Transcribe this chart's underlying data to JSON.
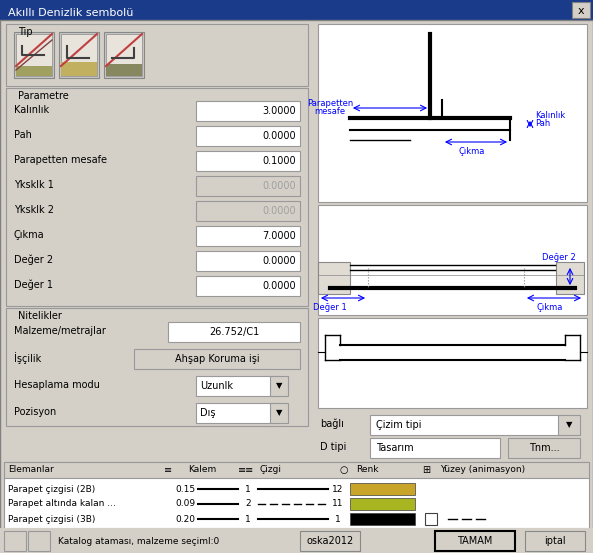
{
  "title": "Akıllı Denizlik sembolü",
  "bg_color": "#d4d0c8",
  "title_bg": "#1a3a8a",
  "title_fg": "#ffffff",
  "section_tip": "Tip",
  "section_parametre": "Parametre",
  "section_nitelikler": "Nitelikler",
  "params": [
    {
      "label": "Kalınlık",
      "value": "3.0000",
      "enabled": true
    },
    {
      "label": "Pah",
      "value": "0.0000",
      "enabled": true
    },
    {
      "label": "Parapetten mesafe",
      "value": "0.1000",
      "enabled": true
    },
    {
      "label": "Yksklk 1",
      "value": "0.0000",
      "enabled": false
    },
    {
      "label": "Yksklk 2",
      "value": "0.0000",
      "enabled": false
    },
    {
      "label": "Çıkma",
      "value": "7.0000",
      "enabled": true
    },
    {
      "label": "Değer 2",
      "value": "0.0000",
      "enabled": true
    },
    {
      "label": "Değer 1",
      "value": "0.0000",
      "enabled": true
    }
  ],
  "nitelikler": [
    {
      "label": "Malzeme/metrajlar",
      "value": "26.752/C1",
      "type": "field"
    },
    {
      "label": "İşçilik",
      "value": "Ahşap Koruma işi",
      "type": "button"
    },
    {
      "label": "Hesaplama modu",
      "value": "Uzunlk",
      "type": "dropdown"
    },
    {
      "label": "Pozisyon",
      "value": "Dış",
      "type": "dropdown"
    }
  ],
  "elemanlar_rows": [
    {
      "name": "Parapet çizgisi (2B)",
      "kalem": "0.15",
      "line1_solid": true,
      "cizgi_num": "1",
      "line2_solid": true,
      "cizgi_num2": "12",
      "color": "#c8a428",
      "has_box": false,
      "has_dash": false
    },
    {
      "name": "Parapet altında kalan ...",
      "kalem": "0.09",
      "line1_solid": true,
      "cizgi_num": "2",
      "line2_solid": false,
      "cizgi_num2": "11",
      "color": "#a8b420",
      "has_box": false,
      "has_dash": false
    },
    {
      "name": "Parapet çizgisi (3B)",
      "kalem": "0.20",
      "line1_solid": true,
      "cizgi_num": "1",
      "line2_solid": true,
      "cizgi_num2": "1",
      "color": "#000000",
      "has_box": true,
      "has_dash": true
    }
  ],
  "bottom_text": "Katalog ataması, malzeme seçimI:0",
  "bagli_label": "bağlı",
  "bagli_value": "Çizim tipi",
  "dtipi_label": "D tipi",
  "dtipi_value": "Tasarım",
  "dtipi_btn": "Tnm..."
}
